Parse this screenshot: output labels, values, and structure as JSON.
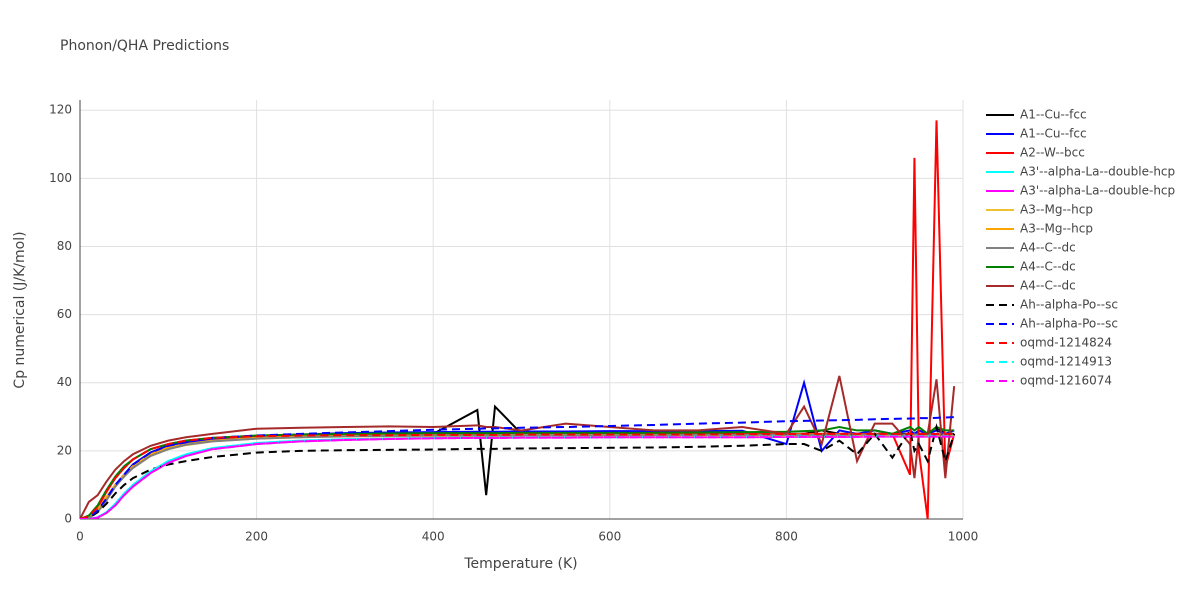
{
  "chart_data": {
    "type": "line",
    "title": "Phonon/QHA Predictions",
    "xlabel": "Temperature (K)",
    "ylabel": "Cp numerical (J/K/mol)",
    "xlim": [
      0,
      1000
    ],
    "ylim": [
      0,
      123
    ],
    "xticks": [
      0,
      200,
      400,
      600,
      800,
      1000
    ],
    "yticks": [
      0,
      20,
      40,
      60,
      80,
      100,
      120
    ],
    "grid": true,
    "legend": "right",
    "x": [
      0,
      10,
      20,
      30,
      40,
      50,
      60,
      80,
      100,
      120,
      150,
      200,
      250,
      300,
      350,
      400,
      450,
      460,
      470,
      500,
      550,
      600,
      650,
      700,
      750,
      800,
      820,
      840,
      860,
      880,
      900,
      920,
      940,
      945,
      950,
      960,
      970,
      980,
      990
    ],
    "series": [
      {
        "name": "A1--Cu--fcc",
        "color": "#000000",
        "dash": false,
        "values": [
          0,
          0.5,
          2.5,
          6,
          10,
          13,
          16,
          19.5,
          21.5,
          22.5,
          23.5,
          24.3,
          24.6,
          24.8,
          24.9,
          25,
          32,
          7,
          33,
          25,
          25,
          25,
          25,
          25,
          25,
          25,
          25,
          26,
          25,
          25,
          25,
          25,
          25,
          25,
          25,
          25,
          27,
          25,
          25
        ]
      },
      {
        "name": "A1--Cu--fcc",
        "color": "#0000ff",
        "dash": false,
        "values": [
          0,
          0.5,
          2.5,
          6,
          10,
          13,
          16,
          19.5,
          21.5,
          22.5,
          23.5,
          24.3,
          24.8,
          25.2,
          25.4,
          25.5,
          25.6,
          25.6,
          25.6,
          25.7,
          25.7,
          25.8,
          25.8,
          25.8,
          25.9,
          22,
          40,
          20,
          26,
          25,
          26,
          25,
          26,
          25,
          26,
          25,
          26,
          25,
          26
        ]
      },
      {
        "name": "A2--W--bcc",
        "color": "#ff0000",
        "dash": false,
        "values": [
          0,
          0.8,
          3.5,
          8,
          12,
          15,
          17.5,
          20.5,
          22,
          23,
          23.8,
          24.3,
          24.5,
          24.6,
          24.6,
          24.7,
          24.7,
          24.7,
          24.7,
          24.8,
          24.8,
          24.8,
          24.8,
          24.8,
          24.9,
          24.9,
          25,
          25,
          25,
          25,
          25,
          25,
          13,
          106,
          20,
          0,
          117,
          15,
          25
        ]
      },
      {
        "name": "A3'--alpha-La--double-hcp",
        "color": "#00ffff",
        "dash": false,
        "values": [
          0,
          0,
          0.5,
          2,
          4.5,
          7.5,
          10,
          14,
          17,
          19,
          20.8,
          22.3,
          23,
          23.4,
          23.6,
          23.8,
          23.9,
          23.9,
          23.9,
          24,
          24,
          24,
          24.1,
          24.1,
          24.1,
          24.2,
          24.2,
          24.2,
          24.2,
          24.2,
          24.3,
          24.3,
          24.3,
          24.3,
          24.3,
          24.3,
          24.3,
          24.3,
          24.3
        ]
      },
      {
        "name": "A3'--alpha-La--double-hcp",
        "color": "#ff00ff",
        "dash": false,
        "values": [
          0,
          0,
          0.4,
          1.8,
          4,
          7,
          9.5,
          13.5,
          16.5,
          18.5,
          20.5,
          22,
          22.8,
          23.2,
          23.5,
          23.7,
          23.8,
          23.8,
          23.8,
          23.9,
          23.9,
          24,
          24,
          24,
          24,
          24.1,
          24.1,
          24.1,
          24.1,
          24.1,
          24.2,
          24.2,
          24.2,
          24.2,
          24.2,
          24.2,
          24.2,
          24.2,
          24.2
        ]
      },
      {
        "name": "A3--Mg--hcp",
        "color": "#f0c030",
        "dash": false,
        "values": [
          0,
          0.5,
          2.5,
          6,
          9.5,
          12.5,
          15,
          18.5,
          20.5,
          21.7,
          22.8,
          23.6,
          24,
          24.2,
          24.3,
          24.4,
          24.4,
          24.4,
          24.4,
          24.5,
          24.5,
          24.5,
          24.5,
          24.5,
          24.5,
          24.5,
          24.6,
          24.6,
          24.6,
          24.6,
          24.6,
          24.6,
          24.6,
          24.6,
          24.6,
          24.6,
          24.6,
          24.6,
          24.6
        ]
      },
      {
        "name": "A3--Mg--hcp",
        "color": "#ffa500",
        "dash": false,
        "values": [
          0,
          0.6,
          2.8,
          6.5,
          10,
          13,
          15.5,
          19,
          21,
          22,
          23,
          23.8,
          24.2,
          24.4,
          24.5,
          24.6,
          24.6,
          24.6,
          24.6,
          24.7,
          24.7,
          24.7,
          24.7,
          24.7,
          24.7,
          24.8,
          24.8,
          24.8,
          24.8,
          24.8,
          24.8,
          24.8,
          24.8,
          24.8,
          24.8,
          24.8,
          24.8,
          24.8,
          24.8
        ]
      },
      {
        "name": "A4--C--dc",
        "color": "#808080",
        "dash": false,
        "values": [
          0,
          0.3,
          2,
          5.5,
          9.5,
          12.5,
          15,
          18.5,
          20.5,
          21.8,
          22.8,
          23.6,
          24,
          24.3,
          24.4,
          24.5,
          24.5,
          24.5,
          24.5,
          24.6,
          24.6,
          24.6,
          24.6,
          24.7,
          24.7,
          24.7,
          24.7,
          24.7,
          24.7,
          24.8,
          24.8,
          24.8,
          24.8,
          24.8,
          24.8,
          24.8,
          24.8,
          24.8,
          24.8
        ]
      },
      {
        "name": "A4--C--dc",
        "color": "#008000",
        "dash": false,
        "values": [
          0,
          1,
          4,
          8.5,
          12.5,
          15.5,
          17.5,
          20.5,
          22,
          23,
          23.8,
          24.5,
          24.8,
          25,
          25.1,
          25.2,
          25.2,
          25.2,
          25.2,
          25.3,
          25.3,
          25.3,
          25.3,
          25.4,
          25.5,
          25.6,
          25.8,
          26,
          27,
          26,
          26,
          25,
          27,
          26,
          27,
          25,
          27,
          26,
          26
        ]
      },
      {
        "name": "A4--C--dc",
        "color": "#a52a2a",
        "dash": false,
        "values": [
          0,
          5,
          7,
          11,
          14.5,
          17,
          19,
          21.5,
          23,
          24,
          25,
          26.5,
          26.8,
          27,
          27.2,
          27,
          27.5,
          27,
          27,
          26,
          28,
          27,
          26,
          26,
          27,
          25,
          33,
          22,
          42,
          17,
          28,
          28,
          22,
          12,
          25,
          25,
          41,
          12,
          39
        ]
      },
      {
        "name": "Ah--alpha-Po--sc",
        "color": "#000000",
        "dash": true,
        "values": [
          0,
          0.3,
          2,
          4.5,
          7.5,
          10,
          12,
          14.5,
          16,
          17,
          18.2,
          19.5,
          20,
          20.2,
          20.3,
          20.4,
          20.6,
          20.6,
          20.6,
          20.7,
          20.8,
          20.9,
          21,
          21.2,
          21.5,
          22,
          22,
          20,
          23,
          19,
          25,
          18,
          26,
          20,
          22,
          17,
          27,
          17,
          25
        ]
      },
      {
        "name": "Ah--alpha-Po--sc",
        "color": "#0000ff",
        "dash": true,
        "values": [
          0,
          0.5,
          2.5,
          6,
          10,
          13,
          16,
          19.5,
          21.5,
          22.5,
          23.8,
          24.5,
          25,
          25.4,
          25.8,
          26.2,
          26.5,
          26.6,
          26.6,
          26.8,
          27,
          27.3,
          27.6,
          28,
          28.3,
          28.7,
          28.8,
          28.9,
          29,
          29.1,
          29.3,
          29.4,
          29.5,
          29.5,
          29.6,
          29.6,
          29.7,
          29.8,
          29.9
        ]
      },
      {
        "name": "oqmd-1214824",
        "color": "#ff0000",
        "dash": true,
        "values": [
          0,
          0.8,
          3.5,
          8,
          12,
          15,
          17.5,
          20.5,
          22,
          23,
          23.8,
          24.3,
          24.5,
          24.6,
          24.6,
          24.7,
          24.7,
          24.7,
          24.7,
          24.8,
          24.8,
          24.8,
          24.8,
          24.8,
          24.9,
          24.9,
          25,
          25,
          25,
          25,
          25,
          25,
          25,
          25,
          25,
          25,
          25,
          25,
          25
        ]
      },
      {
        "name": "oqmd-1214913",
        "color": "#00ffff",
        "dash": true,
        "values": [
          0,
          0,
          0.5,
          2,
          4.5,
          7.5,
          10,
          14,
          17,
          19,
          20.8,
          22.3,
          23,
          23.4,
          23.6,
          23.8,
          23.9,
          23.9,
          23.9,
          24,
          24,
          24,
          24.1,
          24.1,
          24.1,
          24.2,
          24.2,
          24.2,
          24.2,
          24.2,
          24.3,
          24.3,
          24.3,
          24.3,
          24.3,
          24.3,
          24.3,
          24.3,
          24.3
        ]
      },
      {
        "name": "oqmd-1216074",
        "color": "#ff00ff",
        "dash": true,
        "values": [
          0,
          0,
          0.4,
          1.8,
          4,
          7,
          9.5,
          13.5,
          16.5,
          18.5,
          20.5,
          22,
          22.8,
          23.2,
          23.5,
          23.7,
          23.8,
          23.8,
          23.8,
          23.9,
          23.9,
          24,
          24,
          24,
          24,
          24.1,
          24.1,
          24.1,
          24.1,
          24.1,
          24.2,
          24.2,
          24.2,
          24.2,
          24.2,
          24.2,
          24.2,
          24.2,
          24.2
        ]
      }
    ]
  }
}
